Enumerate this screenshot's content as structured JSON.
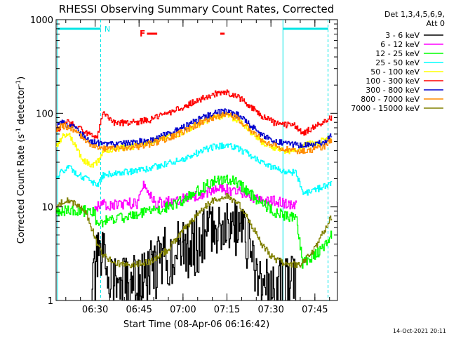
{
  "chart_data": {
    "type": "line",
    "title": "RHESSI Observing Summary Count Rates, Corrected",
    "xlabel": "Start Time (08-Apr-06 06:16:42)",
    "ylabel": "Corrected Count Rate (s",
    "ylabel_sup": "-1",
    "ylabel_tail": " detector",
    "ylabel_tail_sup": "-1",
    "ylabel_end": ")",
    "yscale": "log",
    "ylim": [
      1,
      1000
    ],
    "y_ticks": [
      {
        "value": 1,
        "label": "1"
      },
      {
        "value": 10,
        "label": "10"
      },
      {
        "value": 100,
        "label": "100"
      },
      {
        "value": 1000,
        "label": "1000"
      }
    ],
    "xlim_minutes": [
      0,
      96
    ],
    "x_ticks": [
      {
        "minute": 13.3,
        "label": "06:30"
      },
      {
        "minute": 28.3,
        "label": "06:45"
      },
      {
        "minute": 43.3,
        "label": "07:00"
      },
      {
        "minute": 58.3,
        "label": "07:15"
      },
      {
        "minute": 73.3,
        "label": "07:30"
      },
      {
        "minute": 88.3,
        "label": "07:45"
      }
    ],
    "legend_header": [
      "Det 1,3,4,5,6,9,",
      "Att 0"
    ],
    "legend_position": "right",
    "attenuator_state_line": {
      "color": "#00e5e5",
      "label": "N",
      "label_minute": 16.5
    },
    "flare_flag": {
      "label": "F",
      "color": "#ff0000",
      "segments": [
        [
          31.0,
          34.5
        ],
        [
          56.0,
          57.5
        ]
      ],
      "label_minute": 28.5
    },
    "night_markers_minutes": [
      0.5,
      15.2,
      77.4,
      92.8
    ],
    "saa_markers_minutes": [
      15.2,
      92.8
    ],
    "series": [
      {
        "name": "3 - 6 keV",
        "color": "#000000",
        "x": [
          12,
          14,
          16,
          20,
          24,
          30,
          36,
          40,
          44,
          48,
          52,
          56,
          58,
          60,
          64,
          66,
          70,
          72,
          76,
          80,
          82
        ],
        "y": [
          1.2,
          2.5,
          2.8,
          1.6,
          1.3,
          1.6,
          2.8,
          3.2,
          3.5,
          4.2,
          5.5,
          6.8,
          7.0,
          6.5,
          5.0,
          3.5,
          1.5,
          1.2,
          1.3,
          1.5,
          1.1
        ]
      },
      {
        "name": "6 - 12 keV",
        "color": "#ff00ff",
        "x": [
          13,
          16,
          20,
          24,
          28,
          30,
          32,
          34,
          38,
          44,
          50,
          54,
          58,
          62,
          66,
          70,
          74,
          78,
          82
        ],
        "y": [
          10.0,
          10.5,
          10.5,
          10.8,
          11.0,
          18.0,
          13.0,
          11.0,
          11.5,
          12.5,
          14.0,
          15.0,
          15.5,
          14.5,
          13.0,
          12.0,
          11.5,
          11.0,
          10.5
        ]
      },
      {
        "name": "12 - 25 keV",
        "color": "#00ff00",
        "x": [
          0,
          13,
          14,
          16,
          20,
          26,
          32,
          38,
          44,
          50,
          54,
          58,
          62,
          66,
          70,
          74,
          78,
          82,
          84,
          88,
          92,
          94
        ],
        "y": [
          9.0,
          9.0,
          6.0,
          7.0,
          7.5,
          8.0,
          9.0,
          10.0,
          12.0,
          16.0,
          19.0,
          20.0,
          18.0,
          14.0,
          11.0,
          9.0,
          8.0,
          7.5,
          2.5,
          3.0,
          4.0,
          5.0
        ]
      },
      {
        "name": "25 - 50 keV",
        "color": "#00ffff",
        "x": [
          0,
          2,
          4,
          6,
          8,
          10,
          12,
          14,
          16,
          20,
          26,
          32,
          38,
          44,
          50,
          54,
          58,
          62,
          66,
          70,
          74,
          78,
          82,
          84,
          88,
          92,
          94
        ],
        "y": [
          20,
          24,
          27,
          24,
          22,
          20,
          18,
          17,
          22,
          23,
          24,
          26,
          29,
          33,
          40,
          44,
          46,
          42,
          36,
          30,
          26,
          24,
          23,
          14,
          15,
          17,
          18
        ]
      },
      {
        "name": "50 - 100 keV",
        "color": "#ffff00",
        "x": [
          0,
          2,
          4,
          6,
          8,
          10,
          12,
          14,
          16,
          20,
          26,
          32,
          38,
          44,
          50,
          54,
          58,
          62,
          66,
          70,
          74,
          78,
          82,
          84,
          88,
          92,
          94
        ],
        "y": [
          45,
          55,
          62,
          48,
          36,
          30,
          28,
          30,
          40,
          42,
          44,
          48,
          55,
          65,
          80,
          90,
          95,
          85,
          65,
          50,
          43,
          40,
          40,
          45,
          48,
          52,
          55
        ]
      },
      {
        "name": "100 - 300 keV",
        "color": "#ff0000",
        "x": [
          0,
          2,
          4,
          6,
          8,
          10,
          12,
          14,
          16,
          20,
          26,
          32,
          38,
          44,
          50,
          54,
          58,
          62,
          66,
          70,
          74,
          78,
          82,
          84,
          88,
          92,
          94
        ],
        "y": [
          62,
          78,
          80,
          75,
          68,
          62,
          58,
          55,
          105,
          78,
          80,
          85,
          100,
          120,
          145,
          160,
          165,
          150,
          120,
          95,
          80,
          75,
          73,
          60,
          72,
          85,
          90
        ]
      },
      {
        "name": "300 - 800 keV",
        "color": "#0000cd",
        "x": [
          0,
          2,
          4,
          6,
          8,
          10,
          12,
          14,
          16,
          20,
          26,
          32,
          38,
          44,
          50,
          54,
          58,
          62,
          66,
          70,
          74,
          78,
          82,
          84,
          88,
          92,
          94
        ],
        "y": [
          72,
          78,
          76,
          70,
          62,
          55,
          50,
          48,
          47,
          47,
          48,
          52,
          60,
          72,
          90,
          100,
          105,
          95,
          75,
          58,
          50,
          48,
          46,
          45,
          46,
          50,
          58
        ]
      },
      {
        "name": "800 - 7000 keV",
        "color": "#ff8c00",
        "x": [
          0,
          2,
          4,
          6,
          8,
          10,
          12,
          14,
          16,
          20,
          26,
          32,
          38,
          44,
          50,
          54,
          58,
          62,
          66,
          70,
          74,
          78,
          82,
          84,
          88,
          92,
          94
        ],
        "y": [
          68,
          74,
          72,
          66,
          58,
          52,
          46,
          44,
          42,
          42,
          43,
          47,
          54,
          65,
          82,
          92,
          97,
          88,
          68,
          52,
          45,
          42,
          40,
          40,
          41,
          45,
          52
        ]
      },
      {
        "name": "7000 - 15000 keV",
        "color": "#808000",
        "x": [
          0,
          2,
          4,
          6,
          8,
          10,
          12,
          14,
          16,
          20,
          26,
          32,
          38,
          44,
          50,
          54,
          58,
          62,
          66,
          70,
          74,
          78,
          82,
          84,
          88,
          92,
          94
        ],
        "y": [
          10,
          11.5,
          12,
          11,
          10,
          8.5,
          6,
          4,
          3,
          2.5,
          2.4,
          2.6,
          3.5,
          6,
          9.5,
          12,
          13,
          11,
          7,
          4,
          2.8,
          2.5,
          2.4,
          2.5,
          3.5,
          6,
          8
        ]
      }
    ]
  },
  "footer": {
    "timestamp": "14-Oct-2021 20:11"
  }
}
